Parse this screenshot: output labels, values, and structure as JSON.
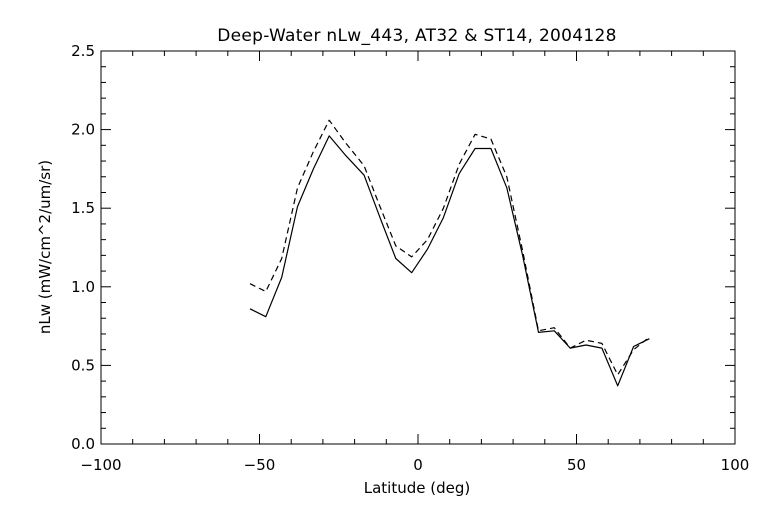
{
  "chart_data": {
    "type": "line",
    "title": "Deep-Water nLw_443, AT32 & ST14, 2004128",
    "xlabel": "Latitude (deg)",
    "ylabel": "nLw (mW/cm^2/um/sr)",
    "xlim": [
      -100,
      100
    ],
    "ylim": [
      0.0,
      2.5
    ],
    "x_ticks": [
      "−100",
      "−50",
      "0",
      "50",
      "100"
    ],
    "y_ticks": [
      "0.0",
      "0.5",
      "1.0",
      "1.5",
      "2.0",
      "2.5"
    ],
    "grid": false,
    "series": [
      {
        "style": "solid",
        "color": "#000000",
        "points": [
          [
            -53,
            0.86
          ],
          [
            -48,
            0.81
          ],
          [
            -43,
            1.06
          ],
          [
            -38,
            1.51
          ],
          [
            -33,
            1.75
          ],
          [
            -28,
            1.96
          ],
          [
            -23,
            1.84
          ],
          [
            -17,
            1.71
          ],
          [
            -12,
            1.44
          ],
          [
            -7,
            1.18
          ],
          [
            -2,
            1.09
          ],
          [
            3,
            1.24
          ],
          [
            8,
            1.44
          ],
          [
            13,
            1.72
          ],
          [
            18,
            1.88
          ],
          [
            23,
            1.88
          ],
          [
            28,
            1.63
          ],
          [
            33,
            1.2
          ],
          [
            38,
            0.71
          ],
          [
            43,
            0.72
          ],
          [
            48,
            0.61
          ],
          [
            53,
            0.63
          ],
          [
            58,
            0.61
          ],
          [
            63,
            0.37
          ],
          [
            68,
            0.62
          ],
          [
            73,
            0.67
          ]
        ]
      },
      {
        "style": "dashed",
        "color": "#000000",
        "points": [
          [
            -53,
            1.02
          ],
          [
            -48,
            0.97
          ],
          [
            -43,
            1.18
          ],
          [
            -38,
            1.63
          ],
          [
            -33,
            1.86
          ],
          [
            -28,
            2.06
          ],
          [
            -23,
            1.92
          ],
          [
            -17,
            1.77
          ],
          [
            -12,
            1.51
          ],
          [
            -7,
            1.26
          ],
          [
            -2,
            1.19
          ],
          [
            3,
            1.3
          ],
          [
            8,
            1.5
          ],
          [
            13,
            1.78
          ],
          [
            18,
            1.97
          ],
          [
            23,
            1.94
          ],
          [
            28,
            1.7
          ],
          [
            33,
            1.23
          ],
          [
            38,
            0.72
          ],
          [
            43,
            0.74
          ],
          [
            48,
            0.61
          ],
          [
            53,
            0.66
          ],
          [
            58,
            0.64
          ],
          [
            63,
            0.44
          ],
          [
            68,
            0.6
          ],
          [
            73,
            0.68
          ]
        ]
      }
    ]
  }
}
